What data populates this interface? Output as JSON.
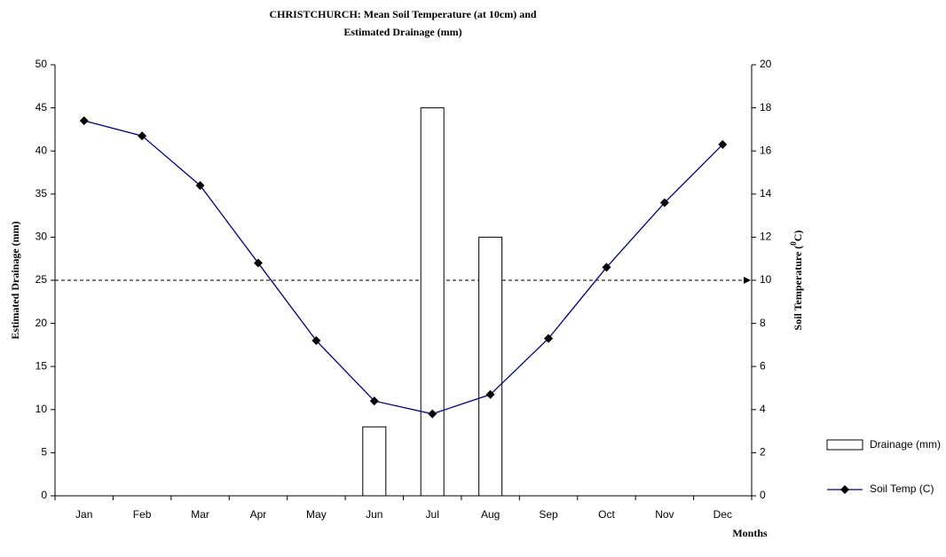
{
  "chart_data": {
    "type": "bar_line",
    "title": [
      "CHRISTCHURCH: Mean Soil Temperature (at 10cm) and",
      "Estimated Drainage (mm)"
    ],
    "xlabel": "Months",
    "ylabel": "Estimated Drainage (mm)",
    "y2label_parts": [
      "Soil Temperature (",
      "0",
      "C)"
    ],
    "categories": [
      "Jan",
      "Feb",
      "Mar",
      "Apr",
      "May",
      "Jun",
      "Jul",
      "Aug",
      "Sep",
      "Oct",
      "Nov",
      "Dec"
    ],
    "series": [
      {
        "name": "Drainage (mm)",
        "type": "bar",
        "color": "#ffffff",
        "values": [
          0,
          0,
          0,
          0,
          0,
          8,
          45,
          30,
          0,
          0,
          0,
          0
        ]
      },
      {
        "name": "Soil Temp (C)",
        "type": "line",
        "axis": "y2",
        "color": "#000080",
        "values": [
          17.4,
          16.7,
          14.4,
          10.8,
          7.2,
          4.4,
          3.8,
          4.7,
          7.3,
          10.6,
          13.6,
          16.3
        ]
      }
    ],
    "ylim": [
      0,
      50
    ],
    "yticks": [
      0,
      5,
      10,
      15,
      20,
      25,
      30,
      35,
      40,
      45,
      50
    ],
    "y2lim": [
      0,
      20
    ],
    "y2ticks": [
      0,
      2,
      4,
      6,
      8,
      10,
      12,
      14,
      16,
      18,
      20
    ],
    "reference_y2": 10,
    "grid": false,
    "legend": "right"
  }
}
